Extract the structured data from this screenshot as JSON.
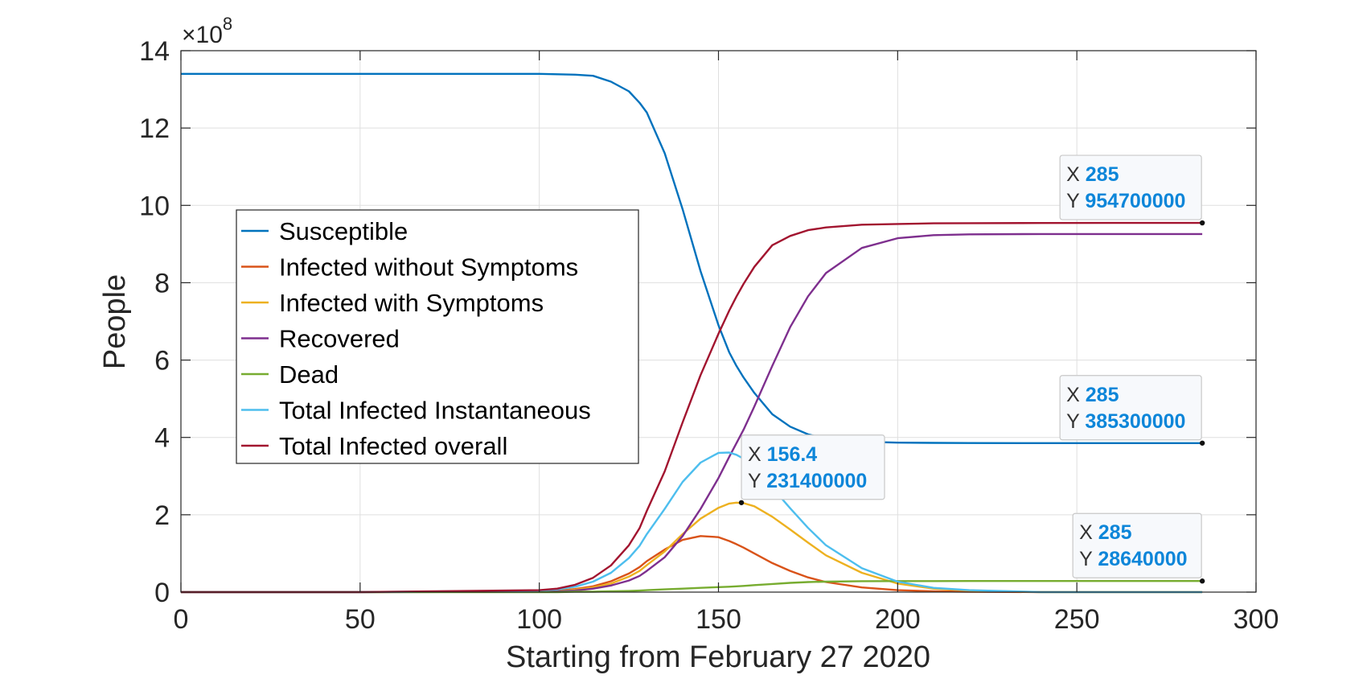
{
  "chart_data": {
    "type": "line",
    "title": "",
    "xlabel": "Starting from February 27 2020",
    "ylabel": "People",
    "y_multiplier_label": "×10",
    "y_multiplier_exponent": "8",
    "xlim": [
      0,
      300
    ],
    "ylim": [
      0,
      14
    ],
    "y_scale": 100000000,
    "xticks": [
      0,
      50,
      100,
      150,
      200,
      250,
      300
    ],
    "yticks": [
      0,
      2,
      4,
      6,
      8,
      10,
      12,
      14
    ],
    "grid": true,
    "legend_position": "left-middle",
    "x": [
      0,
      50,
      100,
      105,
      110,
      115,
      120,
      125,
      128,
      130,
      135,
      140,
      145,
      150,
      153,
      155,
      157,
      160,
      165,
      170,
      175,
      180,
      190,
      200,
      210,
      220,
      240,
      260,
      285
    ],
    "series": [
      {
        "name": "Susceptible",
        "color": "#0072BD",
        "values": [
          13.4,
          13.4,
          13.4,
          13.39,
          13.38,
          13.35,
          13.2,
          12.95,
          12.65,
          12.4,
          11.35,
          9.9,
          8.3,
          6.9,
          6.2,
          5.85,
          5.55,
          5.15,
          4.6,
          4.28,
          4.08,
          3.97,
          3.89,
          3.865,
          3.858,
          3.855,
          3.853,
          3.853,
          3.853
        ]
      },
      {
        "name": "Infected without Symptoms",
        "color": "#D95319",
        "values": [
          0,
          0,
          0.02,
          0.04,
          0.08,
          0.15,
          0.28,
          0.48,
          0.65,
          0.8,
          1.1,
          1.35,
          1.45,
          1.42,
          1.32,
          1.24,
          1.15,
          1.0,
          0.75,
          0.55,
          0.38,
          0.26,
          0.12,
          0.05,
          0.02,
          0.01,
          0,
          0,
          0
        ]
      },
      {
        "name": "Infected with Symptoms",
        "color": "#EDB120",
        "values": [
          0,
          0,
          0.02,
          0.03,
          0.06,
          0.12,
          0.22,
          0.4,
          0.55,
          0.7,
          1.05,
          1.5,
          1.9,
          2.18,
          2.29,
          2.314,
          2.3,
          2.22,
          1.95,
          1.62,
          1.28,
          0.95,
          0.5,
          0.22,
          0.09,
          0.04,
          0,
          0,
          0
        ]
      },
      {
        "name": "Recovered",
        "color": "#7E2F8E",
        "values": [
          0,
          0,
          0.01,
          0.02,
          0.04,
          0.09,
          0.17,
          0.3,
          0.42,
          0.55,
          0.9,
          1.45,
          2.15,
          2.95,
          3.5,
          3.85,
          4.2,
          4.8,
          5.85,
          6.85,
          7.65,
          8.25,
          8.9,
          9.15,
          9.23,
          9.25,
          9.26,
          9.26,
          9.26
        ]
      },
      {
        "name": "Dead",
        "color": "#77AC30",
        "values": [
          0,
          0,
          0,
          0,
          0.01,
          0.01,
          0.02,
          0.03,
          0.04,
          0.05,
          0.07,
          0.09,
          0.11,
          0.13,
          0.14,
          0.15,
          0.16,
          0.18,
          0.21,
          0.24,
          0.26,
          0.27,
          0.282,
          0.285,
          0.286,
          0.2864,
          0.2864,
          0.2864,
          0.2864
        ]
      },
      {
        "name": "Total Infected Instantaneous",
        "color": "#4DBEEE",
        "values": [
          0,
          0,
          0.04,
          0.07,
          0.14,
          0.27,
          0.5,
          0.88,
          1.2,
          1.5,
          2.15,
          2.85,
          3.35,
          3.6,
          3.61,
          3.55,
          3.45,
          3.22,
          2.7,
          2.17,
          1.66,
          1.21,
          0.62,
          0.27,
          0.11,
          0.05,
          0,
          0,
          0
        ]
      },
      {
        "name": "Total Infected overall",
        "color": "#A2142F",
        "values": [
          0,
          0,
          0.05,
          0.09,
          0.19,
          0.37,
          0.69,
          1.21,
          1.66,
          2.1,
          3.12,
          4.39,
          5.61,
          6.68,
          7.28,
          7.64,
          7.97,
          8.41,
          8.97,
          9.21,
          9.36,
          9.43,
          9.5,
          9.52,
          9.535,
          9.54,
          9.545,
          9.547,
          9.547
        ]
      }
    ],
    "datatips": [
      {
        "x": 285,
        "y": 954700000,
        "x_label": "X",
        "y_label": "Y",
        "x_text": "285",
        "y_text": "954700000",
        "series": "Total Infected overall"
      },
      {
        "x": 285,
        "y": 385300000,
        "x_label": "X",
        "y_label": "Y",
        "x_text": "285",
        "y_text": "385300000",
        "series": "Susceptible"
      },
      {
        "x": 156.4,
        "y": 231400000,
        "x_label": "X",
        "y_label": "Y",
        "x_text": "156.4",
        "y_text": "231400000",
        "series": "Infected with Symptoms"
      },
      {
        "x": 285,
        "y": 28640000,
        "x_label": "X",
        "y_label": "Y",
        "x_text": "285",
        "y_text": "28640000",
        "series": "Dead"
      }
    ],
    "colors": {
      "axis": "#262626",
      "grid": "#dfdfdf",
      "datatip_value": "#0d86d9"
    }
  }
}
